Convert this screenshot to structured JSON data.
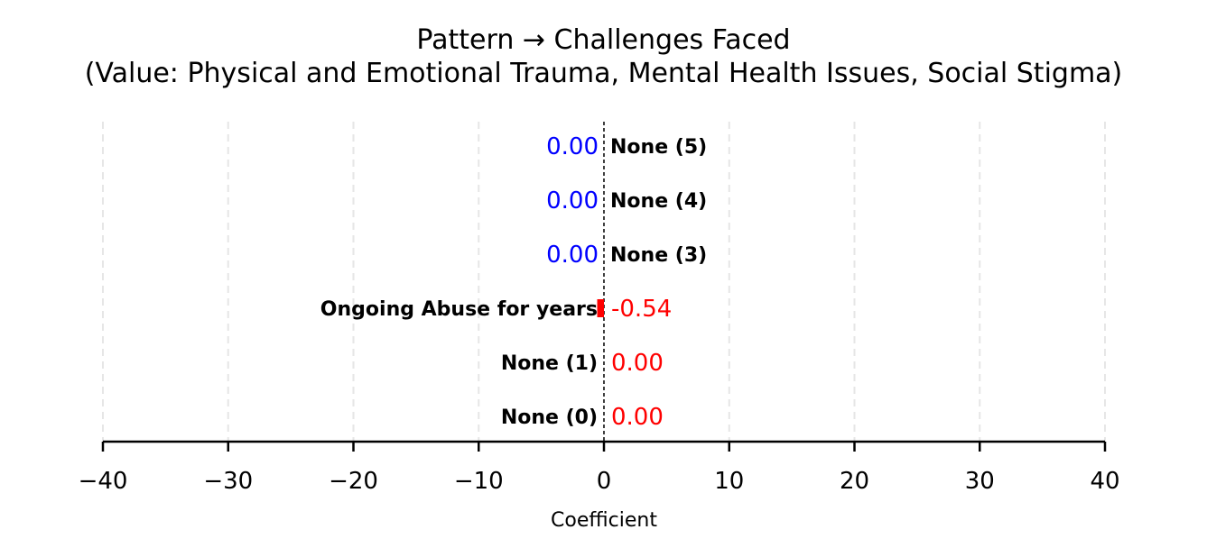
{
  "chart_data": {
    "type": "bar",
    "orientation": "horizontal",
    "title": "Pattern → Challenges Faced",
    "subtitle": "(Value: Physical and Emotional Trauma, Mental Health Issues, Social Stigma)",
    "xlabel": "Coefficient",
    "ylabel": "",
    "xlim": [
      -40,
      40
    ],
    "x_ticks": [
      -40,
      -30,
      -20,
      -10,
      0,
      10,
      20,
      30,
      40
    ],
    "x_tick_labels": [
      "−40",
      "−30",
      "−20",
      "−10",
      "0",
      "10",
      "20",
      "30",
      "40"
    ],
    "grid": "vertical dashed",
    "zero_line": "dashed",
    "categories": [
      "None (0)",
      "None (1)",
      "Ongoing Abuse for years",
      "None (3)",
      "None (4)",
      "None (5)"
    ],
    "values": [
      0.0,
      0.0,
      -0.54,
      0.0,
      0.0,
      0.0
    ],
    "value_labels": [
      "0.00",
      "0.00",
      "-0.54",
      "0.00",
      "0.00",
      "0.00"
    ],
    "category_label_side": [
      "left",
      "left",
      "left",
      "right",
      "right",
      "right"
    ],
    "value_label_colors": [
      "#ff0000",
      "#ff0000",
      "#ff0000",
      "#0000ff",
      "#0000ff",
      "#0000ff"
    ],
    "bar_color": "#ff0000"
  }
}
